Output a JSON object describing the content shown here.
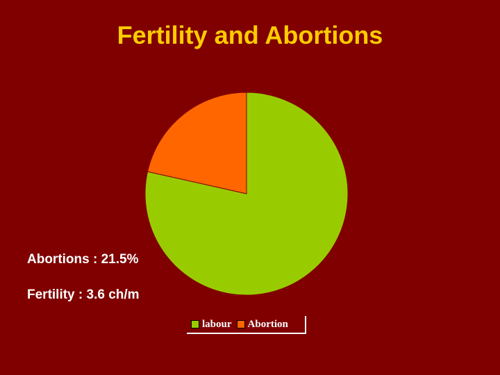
{
  "slide": {
    "title": "Fertility and Abortions",
    "notes": {
      "abortions": "Abortions : 21.5%",
      "fertility": "Fertility : 3.6 ch/m"
    }
  },
  "colors": {
    "background": "#800000",
    "title": "#ffcc00",
    "labour": "#99cc00",
    "abortion": "#ff6600"
  },
  "chart_data": {
    "type": "pie",
    "title": "",
    "categories": [
      "labour",
      "Abortion"
    ],
    "values": [
      78.5,
      21.5
    ],
    "unit": "%",
    "legend_position": "bottom",
    "series": [
      {
        "name": "labour",
        "value": 78.5,
        "color": "#99cc00"
      },
      {
        "name": "Abortion",
        "value": 21.5,
        "color": "#ff6600"
      }
    ]
  }
}
